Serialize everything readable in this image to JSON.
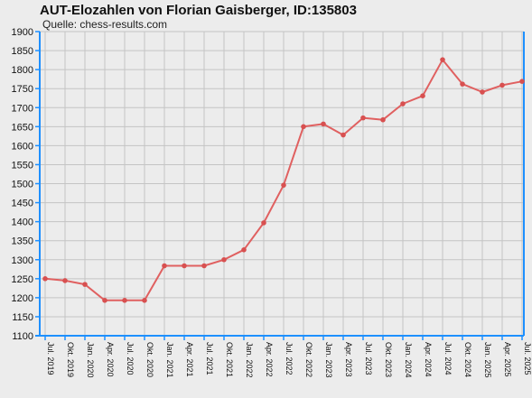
{
  "chart_data": {
    "type": "line",
    "title": "AUT-Elozahlen von Florian Gaisberger, ID:135803",
    "subtitle": "Quelle: chess-results.com",
    "xlabel": "",
    "ylabel": "",
    "ylim": [
      1100,
      1900
    ],
    "yticks": [
      1100,
      1150,
      1200,
      1250,
      1300,
      1350,
      1400,
      1450,
      1500,
      1550,
      1600,
      1650,
      1700,
      1750,
      1800,
      1850,
      1900
    ],
    "grid": true,
    "categories": [
      "Jul. 2019",
      "Okt. 2019",
      "Jan. 2020",
      "Apr. 2020",
      "Jul. 2020",
      "Okt. 2020",
      "Jan. 2021",
      "Apr. 2021",
      "Jul. 2021",
      "Okt. 2021",
      "Jan. 2022",
      "Apr. 2022",
      "Jul. 2022",
      "Okt. 2022",
      "Jan. 2023",
      "Apr. 2023",
      "Jul. 2023",
      "Okt. 2023",
      "Jan. 2024",
      "Apr. 2024",
      "Jul. 2024",
      "Okt. 2024",
      "Jan. 2025",
      "Apr. 2025",
      "Jul. 2025"
    ],
    "series": [
      {
        "values": [
          1250,
          1245,
          1235,
          1193,
          1193,
          1193,
          1284,
          1284,
          1284,
          1300,
          1326,
          1397,
          1496,
          1650,
          1657,
          1628,
          1673,
          1668,
          1710,
          1731,
          1826,
          1762,
          1741,
          1759,
          1769
        ]
      }
    ],
    "colors": {
      "line": "#e06060",
      "marker": "#d85050",
      "axis": "#1e90ff",
      "grid": "#c4c4c4",
      "background": "#ececec"
    }
  }
}
